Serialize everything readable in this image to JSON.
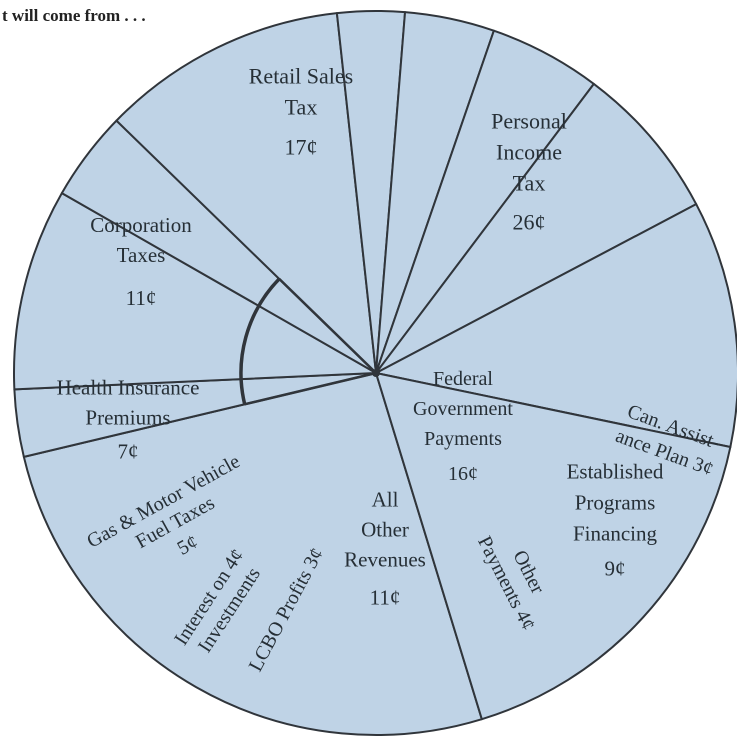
{
  "chart_data": {
    "type": "pie",
    "title": "t will come from . . .",
    "colors": {
      "fill": "#bfd3e6",
      "stroke": "#30353b"
    },
    "slices": [
      {
        "label": "Personal Income Tax",
        "lines": [
          "Personal",
          "Income",
          "Tax"
        ],
        "value_label": "26¢",
        "value": 26
      },
      {
        "label": "Can. Assistance Plan",
        "lines": [
          "Can. Assist-",
          "ance Plan 3¢"
        ],
        "value_label": "",
        "value": 3
      },
      {
        "label": "Established Programs Financing",
        "lines": [
          "Established",
          "Programs",
          "Financing"
        ],
        "value_label": "9¢",
        "value": 9
      },
      {
        "label": "Other Payments",
        "lines": [
          "Other",
          "Payments 4¢"
        ],
        "value_label": "",
        "value": 4
      },
      {
        "label": "All Other Revenues",
        "lines": [
          "All",
          "Other",
          "Revenues"
        ],
        "value_label": "11¢",
        "value": 11
      },
      {
        "label": "LCBO Profits",
        "lines": [
          "LCBO Profits 3¢"
        ],
        "value_label": "",
        "value": 3
      },
      {
        "label": "Interest on Investments",
        "lines": [
          "Interest on 4¢",
          "Investments"
        ],
        "value_label": "",
        "value": 4
      },
      {
        "label": "Gas & Motor Vehicle Fuel Taxes",
        "lines": [
          "Gas & Motor Vehicle",
          "Fuel Taxes"
        ],
        "value_label": "5¢",
        "value": 5
      },
      {
        "label": "Health Insurance Premiums",
        "lines": [
          "Health Insurance",
          "Premiums"
        ],
        "value_label": "7¢",
        "value": 7
      },
      {
        "label": "Corporation Taxes",
        "lines": [
          "Corporation",
          "Taxes"
        ],
        "value_label": "11¢",
        "value": 11
      },
      {
        "label": "Retail Sales Tax",
        "lines": [
          "Retail Sales",
          "Tax"
        ],
        "value_label": "17¢",
        "value": 17
      }
    ],
    "group": {
      "label": "Federal Government Payments",
      "lines": [
        "Federal",
        "Government",
        "Payments"
      ],
      "value_label": "16¢",
      "value": 16,
      "includes": [
        "Can. Assistance Plan",
        "Established Programs Financing",
        "Other Payments"
      ]
    }
  }
}
